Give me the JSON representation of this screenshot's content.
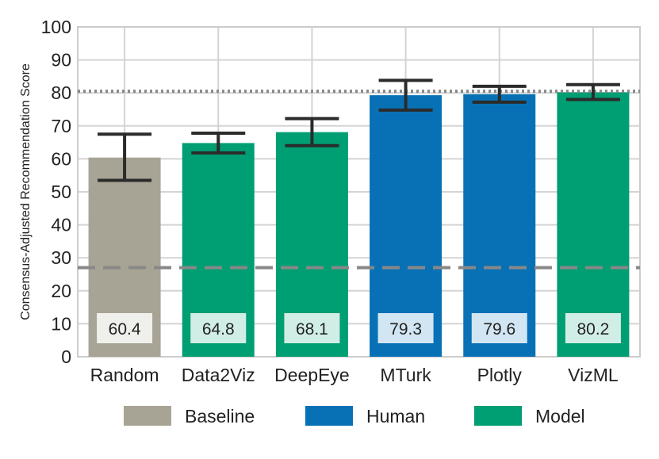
{
  "chart_data": {
    "type": "bar",
    "title": "",
    "xlabel": "",
    "ylabel": "Consensus-Adjusted Recommendation Score",
    "ylim": [
      0,
      100
    ],
    "yticks": [
      0,
      10,
      20,
      30,
      40,
      50,
      60,
      70,
      80,
      90,
      100
    ],
    "grid": true,
    "categories": [
      "Random",
      "Data2Viz",
      "DeepEye",
      "MTurk",
      "Plotly",
      "VizML"
    ],
    "values": [
      60.4,
      64.8,
      68.1,
      79.3,
      79.6,
      80.2
    ],
    "value_labels": [
      "60.4",
      "64.8",
      "68.1",
      "79.3",
      "79.6",
      "80.2"
    ],
    "groups": [
      "Baseline",
      "Model",
      "Model",
      "Human",
      "Human",
      "Model"
    ],
    "error_bars": [
      {
        "low": 53.5,
        "high": 67.5
      },
      {
        "low": 61.8,
        "high": 67.8
      },
      {
        "low": 64.0,
        "high": 72.2
      },
      {
        "low": 74.8,
        "high": 83.8
      },
      {
        "low": 77.2,
        "high": 82.0
      },
      {
        "low": 78.0,
        "high": 82.5
      }
    ],
    "reference_lines": [
      {
        "name": "upper-dotted-line",
        "value": 80.5,
        "style": "dotted"
      },
      {
        "name": "lower-dashed-line",
        "value": 27.0,
        "style": "dashed"
      }
    ],
    "legend": {
      "placement": "bottom",
      "entries": [
        {
          "label": "Baseline",
          "color": "#a8a495"
        },
        {
          "label": "Human",
          "color": "#0871b5"
        },
        {
          "label": "Model",
          "color": "#009e73"
        }
      ]
    },
    "colors": {
      "Baseline": "#a8a495",
      "Human": "#0871b5",
      "Model": "#009e73",
      "error": "#2b2b2b",
      "reference": "#888888"
    }
  }
}
